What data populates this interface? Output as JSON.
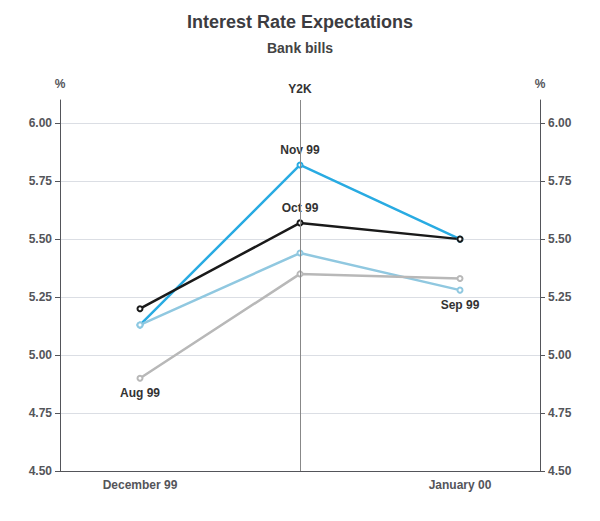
{
  "chart_data": {
    "type": "line",
    "title": "Interest Rate Expectations",
    "subtitle": "Bank bills",
    "categories": [
      "December 99",
      null,
      "January 00"
    ],
    "series": [
      {
        "name": "Nov 99",
        "color": "#29ABE2",
        "values": [
          5.13,
          5.82,
          5.5
        ]
      },
      {
        "name": "Oct 99",
        "color": "#1a1a1a",
        "values": [
          5.2,
          5.57,
          5.5
        ]
      },
      {
        "name": "Sep 99",
        "color": "#90C8E0",
        "values": [
          5.13,
          5.44,
          5.28
        ]
      },
      {
        "name": "Aug 99",
        "color": "#b8b8b8",
        "values": [
          4.9,
          5.35,
          5.33
        ]
      }
    ],
    "ylabel": "%",
    "y2label": "%",
    "ylim": [
      4.5,
      6.1
    ],
    "yticks": [
      {
        "value": 4.5,
        "label": "4.50"
      },
      {
        "value": 4.75,
        "label": "4.75"
      },
      {
        "value": 5.0,
        "label": "5.00"
      },
      {
        "value": 5.25,
        "label": "5.25"
      },
      {
        "value": 5.5,
        "label": "5.50"
      },
      {
        "value": 5.75,
        "label": "5.75"
      },
      {
        "value": 6.0,
        "label": "6.00"
      }
    ],
    "y2lim": [
      4.5,
      6.1
    ],
    "y2ticks": [
      {
        "value": 4.5,
        "label": "4.50"
      },
      {
        "value": 4.75,
        "label": "4.75"
      },
      {
        "value": 5.0,
        "label": "5.00"
      },
      {
        "value": 5.25,
        "label": "5.25"
      },
      {
        "value": 5.5,
        "label": "5.50"
      },
      {
        "value": 5.75,
        "label": "5.75"
      },
      {
        "value": 6.0,
        "label": "6.00"
      }
    ],
    "grid": true,
    "annotations": [
      {
        "text": "Y2K",
        "x": 1
      }
    ]
  }
}
